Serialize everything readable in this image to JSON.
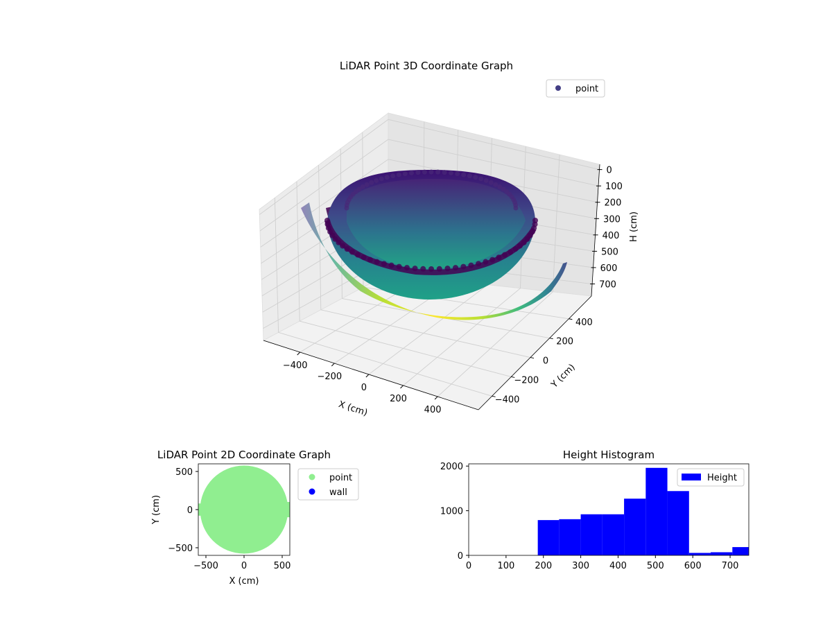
{
  "chart_data": [
    {
      "type": "scatter3d",
      "title": "LiDAR Point 3D Coordinate Graph",
      "xlabel": "X (cm)",
      "ylabel": "Y (cm)",
      "zlabel": "H (cm)",
      "x_ticks": [
        "−400",
        "−200",
        "0",
        "200",
        "400"
      ],
      "y_ticks": [
        "−400",
        "−200",
        "0",
        "200",
        "400"
      ],
      "z_ticks": [
        "0",
        "100",
        "200",
        "300",
        "400",
        "500",
        "600",
        "700"
      ],
      "legend": [
        "point"
      ],
      "legend_placement": "top-right",
      "colormap": "viridis",
      "point_color": "#433e85"
    },
    {
      "type": "scatter",
      "title": "LiDAR Point 2D Coordinate Graph",
      "xlabel": "X (cm)",
      "ylabel": "Y (cm)",
      "x_ticks": [
        "−500",
        "0",
        "500"
      ],
      "y_ticks": [
        "500",
        "0",
        "−500"
      ],
      "xlim": [
        -600,
        600
      ],
      "ylim": [
        -600,
        600
      ],
      "legend_placement": "outside-right",
      "series": [
        {
          "name": "point",
          "color": "#90ee90",
          "shape": "disk",
          "radius": 560
        },
        {
          "name": "wall",
          "color": "#0000ff"
        }
      ]
    },
    {
      "type": "bar",
      "title": "Height Histogram",
      "legend": [
        "Height"
      ],
      "legend_placement": "top-right",
      "color": "#0000ff",
      "xlim": [
        0,
        750
      ],
      "ylim": [
        0,
        2050
      ],
      "x_ticks": [
        "0",
        "100",
        "200",
        "300",
        "400",
        "500",
        "600",
        "700"
      ],
      "y_ticks": [
        "0",
        "1000",
        "2000"
      ],
      "bins": [
        {
          "start": 185,
          "end": 242,
          "value": 790
        },
        {
          "start": 242,
          "end": 300,
          "value": 810
        },
        {
          "start": 300,
          "end": 358,
          "value": 920
        },
        {
          "start": 358,
          "end": 416,
          "value": 920
        },
        {
          "start": 416,
          "end": 474,
          "value": 1270
        },
        {
          "start": 474,
          "end": 532,
          "value": 1960
        },
        {
          "start": 532,
          "end": 590,
          "value": 1440
        },
        {
          "start": 590,
          "end": 648,
          "value": 55
        },
        {
          "start": 648,
          "end": 706,
          "value": 70
        },
        {
          "start": 706,
          "end": 764,
          "value": 185
        }
      ]
    }
  ]
}
